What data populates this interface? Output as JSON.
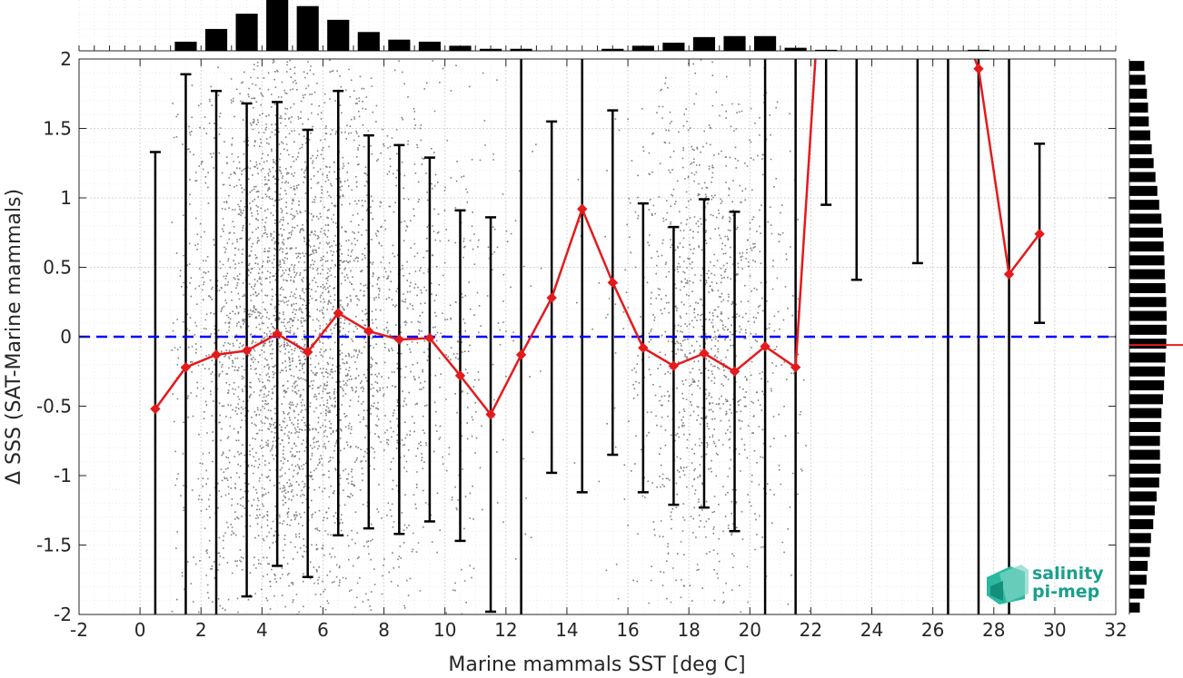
{
  "chart_data": {
    "type": "scatter",
    "title": "",
    "xlabel": "Marine mammals SST [deg C]",
    "ylabel": "Δ SSS (SAT-Marine mammals)",
    "xlim": [
      -2,
      32
    ],
    "ylim": [
      -2,
      2
    ],
    "xticks": [
      -2,
      0,
      2,
      4,
      6,
      8,
      10,
      12,
      14,
      16,
      18,
      20,
      22,
      24,
      26,
      28,
      30,
      32
    ],
    "yticks": [
      -2,
      -1.5,
      -1,
      -0.5,
      0,
      0.5,
      1,
      1.5,
      2
    ],
    "grid": true,
    "zero_line": {
      "y": 0,
      "color": "#0000ff",
      "style": "dashed"
    },
    "colors": {
      "scatter": "#808080",
      "mean_line": "#e41a1c",
      "errorbars": "#000000",
      "histograms": "#000000"
    },
    "mean_series": {
      "x": [
        0.5,
        1.5,
        2.5,
        3.5,
        4.5,
        5.5,
        6.5,
        7.5,
        8.5,
        9.5,
        10.5,
        11.5,
        12.5,
        13.5,
        14.5,
        15.5,
        16.5,
        17.5,
        18.5,
        19.5,
        20.5,
        21.5,
        27.5,
        28.5,
        29.5
      ],
      "y": [
        -0.52,
        -0.22,
        -0.13,
        -0.1,
        0.02,
        -0.11,
        0.17,
        0.04,
        -0.02,
        -0.01,
        -0.28,
        -0.56,
        -0.13,
        0.28,
        0.92,
        0.39,
        -0.08,
        -0.21,
        -0.12,
        -0.25,
        -0.07,
        -0.22,
        1.93,
        0.45,
        0.74
      ]
    },
    "errorbars": [
      {
        "x": 0.5,
        "low": -2.2,
        "high": 1.33
      },
      {
        "x": 1.5,
        "low": -2.2,
        "high": 1.89
      },
      {
        "x": 2.5,
        "low": -2.2,
        "high": 1.77
      },
      {
        "x": 3.5,
        "low": -1.87,
        "high": 1.68
      },
      {
        "x": 4.5,
        "low": -1.65,
        "high": 1.69
      },
      {
        "x": 5.5,
        "low": -1.73,
        "high": 1.49
      },
      {
        "x": 6.5,
        "low": -1.43,
        "high": 1.77
      },
      {
        "x": 7.5,
        "low": -1.38,
        "high": 1.45
      },
      {
        "x": 8.5,
        "low": -1.42,
        "high": 1.38
      },
      {
        "x": 9.5,
        "low": -1.33,
        "high": 1.29
      },
      {
        "x": 10.5,
        "low": -1.47,
        "high": 0.91
      },
      {
        "x": 11.5,
        "low": -1.98,
        "high": 0.86
      },
      {
        "x": 12.5,
        "low": -2.2,
        "high": 2.2
      },
      {
        "x": 13.5,
        "low": -0.98,
        "high": 1.55
      },
      {
        "x": 14.5,
        "low": -1.12,
        "high": 2.2
      },
      {
        "x": 15.5,
        "low": -0.85,
        "high": 1.63
      },
      {
        "x": 16.5,
        "low": -1.12,
        "high": 0.96
      },
      {
        "x": 17.5,
        "low": -1.21,
        "high": 0.79
      },
      {
        "x": 18.5,
        "low": -1.23,
        "high": 0.99
      },
      {
        "x": 19.5,
        "low": -1.4,
        "high": 0.9
      },
      {
        "x": 20.5,
        "low": -2.2,
        "high": 2.2
      },
      {
        "x": 21.5,
        "low": -2.2,
        "high": 2.2
      },
      {
        "x": 22.5,
        "low": 0.95,
        "high": 2.2
      },
      {
        "x": 23.5,
        "low": 0.41,
        "high": 2.2
      },
      {
        "x": 25.5,
        "low": 0.53,
        "high": 2.2
      },
      {
        "x": 26.5,
        "low": -2.2,
        "high": 2.2
      },
      {
        "x": 27.5,
        "low": -2.2,
        "high": 2.2
      },
      {
        "x": 28.5,
        "low": -2.2,
        "high": 2.2
      },
      {
        "x": 29.5,
        "low": 0.1,
        "high": 1.39
      }
    ],
    "top_histogram": {
      "bin_centers": [
        1.5,
        2.5,
        3.5,
        4.5,
        5.5,
        6.5,
        7.5,
        8.5,
        9.5,
        10.5,
        11.5,
        12.5,
        15.5,
        16.5,
        17.5,
        18.5,
        19.5,
        20.5,
        21.5,
        22.5,
        27.5
      ],
      "relative_heights": [
        0.18,
        0.43,
        0.73,
        1.0,
        0.88,
        0.61,
        0.37,
        0.22,
        0.18,
        0.1,
        0.04,
        0.04,
        0.04,
        0.1,
        0.16,
        0.27,
        0.29,
        0.29,
        0.06,
        0.02,
        0.02
      ]
    },
    "right_histogram": {
      "bin_centers": [
        -1.95,
        -1.85,
        -1.75,
        -1.65,
        -1.55,
        -1.45,
        -1.35,
        -1.25,
        -1.15,
        -1.05,
        -0.95,
        -0.85,
        -0.75,
        -0.65,
        -0.55,
        -0.45,
        -0.35,
        -0.25,
        -0.15,
        -0.05,
        0.05,
        0.15,
        0.25,
        0.35,
        0.45,
        0.55,
        0.65,
        0.75,
        0.85,
        0.95,
        1.05,
        1.15,
        1.25,
        1.35,
        1.45,
        1.55,
        1.65,
        1.75,
        1.85,
        1.95
      ],
      "relative_heights": [
        0.28,
        0.4,
        0.46,
        0.49,
        0.55,
        0.58,
        0.64,
        0.68,
        0.73,
        0.8,
        0.84,
        0.82,
        0.82,
        0.84,
        0.86,
        0.9,
        0.93,
        0.95,
        0.97,
        0.99,
        1.0,
        1.0,
        0.99,
        0.97,
        0.95,
        0.94,
        0.92,
        0.9,
        0.86,
        0.8,
        0.75,
        0.7,
        0.65,
        0.6,
        0.56,
        0.52,
        0.5,
        0.47,
        0.43,
        0.4
      ]
    },
    "right_histogram_mean_marker": -0.06
  },
  "logo": {
    "line1": "salinity",
    "line2": "pi-mep"
  }
}
